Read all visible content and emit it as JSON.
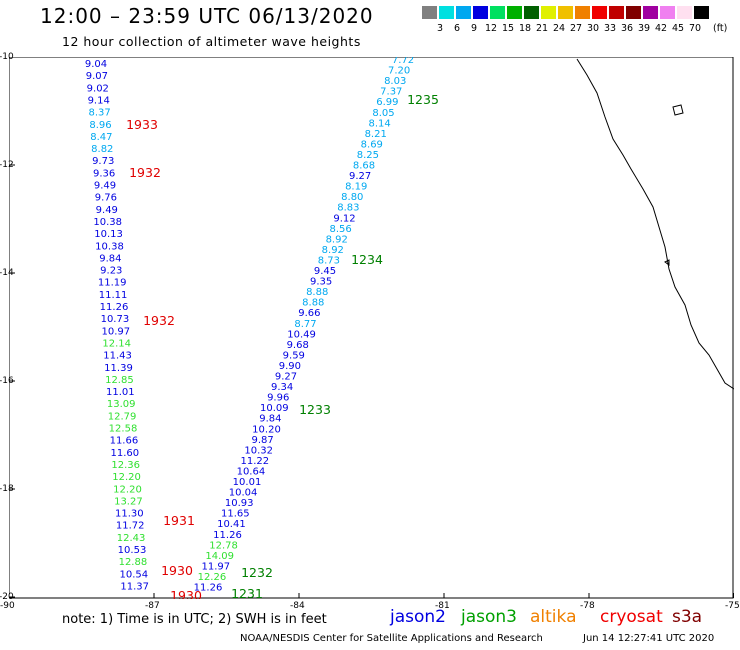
{
  "header": {
    "title": "12:00 – 23:59 UTC 06/13/2020",
    "subtitle": "12 hour collection of altimeter wave heights"
  },
  "legend": {
    "labels": [
      "3",
      "6",
      "9",
      "12",
      "15",
      "18",
      "21",
      "24",
      "27",
      "30",
      "33",
      "36",
      "39",
      "42",
      "45",
      "70"
    ],
    "unit": "(ft)",
    "colors": [
      "#808080",
      "#00e0e0",
      "#00a8f0",
      "#0000e0",
      "#00e060",
      "#00b000",
      "#006000",
      "#e0f000",
      "#f0c000",
      "#f08000",
      "#f00000",
      "#c00000",
      "#800000",
      "#a000a0",
      "#f080f0",
      "#ffe0f0",
      "#000000"
    ]
  },
  "axes": {
    "lat_labels": [
      "-10",
      "-12",
      "-14",
      "-16",
      "-18",
      "-20"
    ],
    "lon_labels": [
      "-90",
      "-87",
      "-84",
      "-81",
      "-78",
      "-75"
    ]
  },
  "tracks": [
    {
      "series": "jason2",
      "pass": "1933",
      "labels": [
        "1933",
        "1932",
        "1932",
        "1931",
        "1930",
        "1930"
      ],
      "heights": [
        "9.04",
        "9.07",
        "9.02",
        "9.14",
        "8.37",
        "8.96",
        "8.47",
        "8.82",
        "9.73",
        "9.36",
        "9.49",
        "9.76",
        "9.49",
        "10.38",
        "10.13",
        "10.38",
        "9.84",
        "9.23",
        "11.19",
        "11.11",
        "11.26",
        "10.73",
        "10.97",
        "12.14",
        "11.43",
        "11.39",
        "12.85",
        "11.01",
        "13.09",
        "12.79",
        "12.58",
        "11.66",
        "11.60",
        "12.36",
        "12.20",
        "12.20",
        "13.27",
        "11.30",
        "11.72",
        "12.43",
        "10.53",
        "12.88",
        "10.54",
        "11.37"
      ]
    },
    {
      "series": "jason3",
      "pass": "1235",
      "labels": [
        "1235",
        "1234",
        "1233",
        "1232",
        "1231"
      ],
      "heights": [
        "7.72",
        "7.20",
        "8.03",
        "7.37",
        "6.99",
        "8.05",
        "8.14",
        "8.21",
        "8.69",
        "8.25",
        "8.68",
        "9.27",
        "8.19",
        "8.80",
        "8.83",
        "9.12",
        "8.56",
        "8.92",
        "8.92",
        "8.73",
        "9.45",
        "9.35",
        "8.88",
        "8.88",
        "9.66",
        "8.77",
        "10.49",
        "9.68",
        "9.59",
        "9.90",
        "9.27",
        "9.34",
        "9.96",
        "10.09",
        "9.84",
        "10.20",
        "9.87",
        "10.32",
        "11.22",
        "10.64",
        "10.01",
        "10.04",
        "10.93",
        "11.65",
        "10.41",
        "11.26",
        "12.78",
        "14.09",
        "11.97",
        "12.26",
        "11.26"
      ]
    }
  ],
  "footer": {
    "note": "note: 1) Time is in UTC; 2) SWH is in feet",
    "satellites": [
      {
        "name": "jason2",
        "color": "#0000e0"
      },
      {
        "name": "jason3",
        "color": "#00a000"
      },
      {
        "name": "altika",
        "color": "#f08000"
      },
      {
        "name": "cryosat",
        "color": "#f00000"
      },
      {
        "name": "s3a",
        "color": "#800000"
      }
    ],
    "credit": "NOAA/NESDIS Center for Satellite Applications and Research",
    "timestamp": "Jun 14 12:27:41 UTC 2020"
  }
}
